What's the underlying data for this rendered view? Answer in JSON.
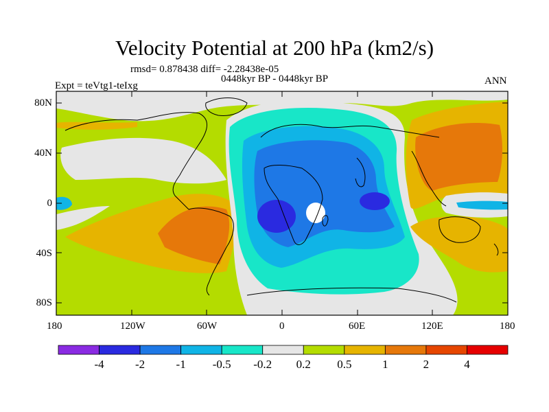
{
  "title": "Velocity Potential at 200 hPa (km2/s)",
  "rmsd_text": "rmsd= 0.878438 diff= -2.28438e-05",
  "left_label": "Expt = teVtg1-teIxg",
  "center_label": "0448kyr BP - 0448kyr BP",
  "right_label": "ANN",
  "lon_ticks": [
    "180",
    "120W",
    "60W",
    "0",
    "60E",
    "120E",
    "180"
  ],
  "lat_ticks": [
    "80N",
    "40N",
    "0",
    "40S",
    "80S"
  ],
  "colorbar": {
    "levels": [
      "-4",
      "-2",
      "-1",
      "-0.5",
      "-0.2",
      "0.2",
      "0.5",
      "1",
      "2",
      "4"
    ],
    "colors": [
      "#8a2be2",
      "#2a2ae0",
      "#1e78e6",
      "#10b4e6",
      "#18e6c8",
      "#e6e6e6",
      "#b4dc00",
      "#e6b400",
      "#e6780a",
      "#e64600",
      "#e60000"
    ]
  },
  "colors": {
    "lvl_m4": "#2a2ae0",
    "lvl_m2": "#1e78e6",
    "lvl_m1": "#10b4e6",
    "lvl_m05": "#18e6c8",
    "lvl_0": "#e6e6e6",
    "lvl_p02": "#b4dc00",
    "lvl_p05": "#e6b400",
    "lvl_p1": "#e6780a"
  }
}
